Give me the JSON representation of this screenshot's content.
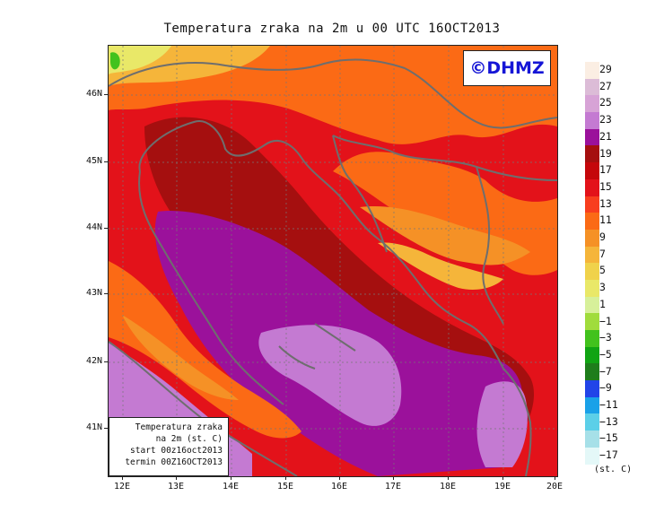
{
  "title": "Temperatura zraka na 2m u 00 UTC 16OCT2013",
  "watermark": "©DHMZ",
  "info_box": {
    "line1": "Temperatura zraka",
    "line2": "na 2m (st. C)",
    "line3": "start 00z16oct2013",
    "line4": "termin 00Z16OCT2013"
  },
  "lat_axis": [
    "46N",
    "45N",
    "44N",
    "43N",
    "42N",
    "41N"
  ],
  "lon_axis": [
    "12E",
    "13E",
    "14E",
    "15E",
    "16E",
    "17E",
    "18E",
    "19E",
    "20E"
  ],
  "legend": {
    "labels": [
      "29",
      "27",
      "25",
      "23",
      "21",
      "19",
      "17",
      "15",
      "13",
      "11",
      "9",
      "7",
      "5",
      "3",
      "1",
      "−1",
      "−3",
      "−5",
      "−7",
      "−9",
      "−11",
      "−13",
      "−15",
      "−17"
    ],
    "colors": [
      "#fbeee3",
      "#dcbcd7",
      "#d7a3d6",
      "#c47ad2",
      "#9b119b",
      "#a50f0f",
      "#c5070b",
      "#e3121a",
      "#f83e1e",
      "#fb6a15",
      "#f59126",
      "#f5b53a",
      "#f0d24b",
      "#e9e868",
      "#d7f09a",
      "#a0dc3c",
      "#42c21d",
      "#10a413",
      "#1e7d1b",
      "#2244e8",
      "#1aa1e8",
      "#5ccfe8",
      "#a6e0e8",
      "#e4f8f8"
    ],
    "units": "(st. C)"
  }
}
